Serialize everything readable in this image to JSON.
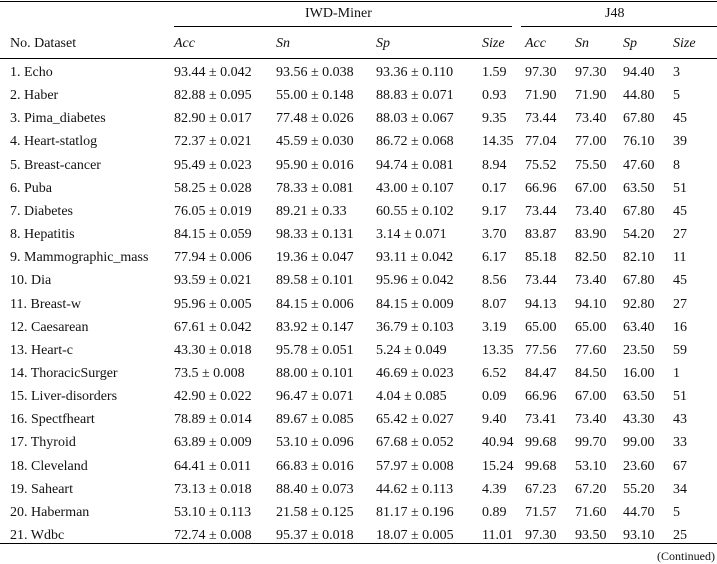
{
  "table": {
    "groups": [
      "IWD-Miner",
      "J48"
    ],
    "columns": [
      "No. Dataset",
      "Acc",
      "Sn",
      "Sp",
      "Size",
      "Acc",
      "Sn",
      "Sp",
      "Size"
    ],
    "rows": [
      [
        "1. Echo",
        "93.44 ± 0.042",
        "93.56 ± 0.038",
        "93.36 ± 0.110",
        "1.59",
        "97.30",
        "97.30",
        "94.40",
        "3"
      ],
      [
        "2. Haber",
        "82.88 ± 0.095",
        "55.00 ± 0.148",
        "88.83 ± 0.071",
        "0.93",
        "71.90",
        "71.90",
        "44.80",
        "5"
      ],
      [
        "3. Pima_diabetes",
        "82.90 ± 0.017",
        "77.48 ± 0.026",
        "88.03 ± 0.067",
        "9.35",
        "73.44",
        "73.40",
        "67.80",
        "45"
      ],
      [
        "4. Heart-statlog",
        "72.37 ± 0.021",
        "45.59 ± 0.030",
        "86.72 ± 0.068",
        "14.35",
        "77.04",
        "77.00",
        "76.10",
        "39"
      ],
      [
        "5. Breast-cancer",
        "95.49 ± 0.023",
        "95.90 ± 0.016",
        "94.74 ± 0.081",
        "8.94",
        "75.52",
        "75.50",
        "47.60",
        "8"
      ],
      [
        "6. Puba",
        "58.25 ± 0.028",
        "78.33 ± 0.081",
        "43.00 ± 0.107",
        "0.17",
        "66.96",
        "67.00",
        "63.50",
        "51"
      ],
      [
        "7. Diabetes",
        "76.05 ± 0.019",
        "89.21 ± 0.33",
        "60.55 ± 0.102",
        "9.17",
        "73.44",
        "73.40",
        "67.80",
        "45"
      ],
      [
        "8. Hepatitis",
        "84.15 ± 0.059",
        "98.33 ± 0.131",
        "3.14 ± 0.071",
        "3.70",
        "83.87",
        "83.90",
        "54.20",
        "27"
      ],
      [
        "9. Mammographic_mass",
        "77.94 ± 0.006",
        "19.36 ± 0.047",
        "93.11 ± 0.042",
        "6.17",
        "85.18",
        "82.50",
        "82.10",
        "11"
      ],
      [
        "10. Dia",
        "93.59 ± 0.021",
        "89.58 ± 0.101",
        "95.96 ± 0.042",
        "8.56",
        "73.44",
        "73.40",
        "67.80",
        "45"
      ],
      [
        "11. Breast-w",
        "95.96 ± 0.005",
        "84.15 ± 0.006",
        "84.15 ± 0.009",
        "8.07",
        "94.13",
        "94.10",
        "92.80",
        "27"
      ],
      [
        "12. Caesarean",
        "67.61 ± 0.042",
        "83.92 ± 0.147",
        "36.79 ± 0.103",
        "3.19",
        "65.00",
        "65.00",
        "63.40",
        "16"
      ],
      [
        "13. Heart-c",
        "43.30 ± 0.018",
        "95.78 ± 0.051",
        "5.24 ± 0.049",
        "13.35",
        "77.56",
        "77.60",
        "23.50",
        "59"
      ],
      [
        "14. ThoracicSurger",
        "73.5 ± 0.008",
        "88.00 ± 0.101",
        "46.69 ± 0.023",
        "6.52",
        "84.47",
        "84.50",
        "16.00",
        "1"
      ],
      [
        "15. Liver-disorders",
        "42.90 ± 0.022",
        "96.47 ± 0.071",
        "4.04 ± 0.085",
        "0.09",
        "66.96",
        "67.00",
        "63.50",
        "51"
      ],
      [
        "16. Spectfheart",
        "78.89 ± 0.014",
        "89.67 ± 0.085",
        "65.42 ± 0.027",
        "9.40",
        "73.41",
        "73.40",
        "43.30",
        "43"
      ],
      [
        "17. Thyroid",
        "63.89 ± 0.009",
        "53.10 ± 0.096",
        "67.68 ± 0.052",
        "40.94",
        "99.68",
        "99.70",
        "99.00",
        "33"
      ],
      [
        "18. Cleveland",
        "64.41 ± 0.011",
        "66.83 ± 0.016",
        "57.97 ± 0.008",
        "15.24",
        "99.68",
        "53.10",
        "23.60",
        "67"
      ],
      [
        "19. Saheart",
        "73.13 ± 0.018",
        "88.40 ± 0.073",
        "44.62 ± 0.113",
        "4.39",
        "67.23",
        "67.20",
        "55.20",
        "34"
      ],
      [
        "20. Haberman",
        "53.10 ± 0.113",
        "21.58 ± 0.125",
        "81.17 ± 0.196",
        "0.89",
        "71.57",
        "71.60",
        "44.70",
        "5"
      ],
      [
        "21. Wdbc",
        "72.74 ± 0.008",
        "95.37 ± 0.018",
        "18.07 ± 0.005",
        "11.01",
        "97.30",
        "93.50",
        "93.10",
        "25"
      ]
    ],
    "footer_note": "(Continued)"
  }
}
